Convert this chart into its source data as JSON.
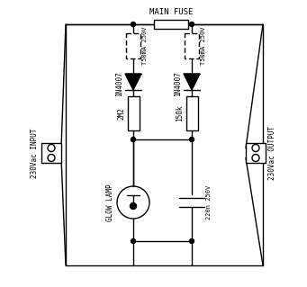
{
  "title": "MAIN FUSE",
  "background": "#ffffff",
  "line_color": "#000000",
  "line_width": 1.0,
  "labels": {
    "input": "230Vac INPUT",
    "output": "230Vac OUTPUT",
    "diode1": "1N4007",
    "diode2": "1N4007",
    "fuse1": "T50mA 250V",
    "fuse2": "T50mA 250V",
    "resistor1": "2M2",
    "resistor2": "150k",
    "cap": "220n 250V",
    "lamp": "GLOW LAMP"
  }
}
